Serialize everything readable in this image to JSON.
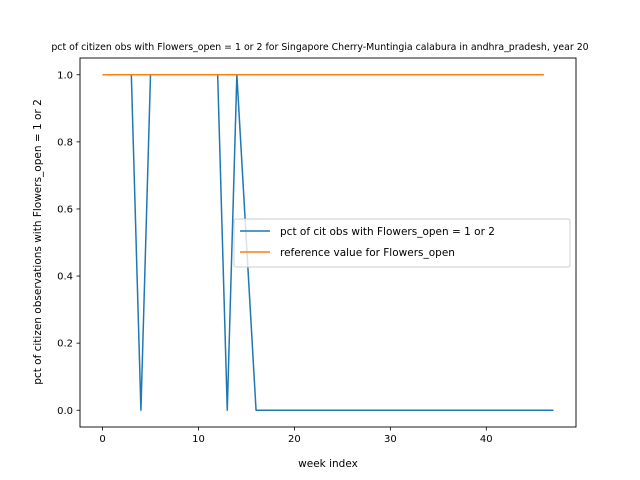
{
  "chart_data": {
    "type": "line",
    "title": "pct of citizen obs with Flowers_open = 1 or 2 for Singapore Cherry-Muntingia calabura in andhra_pradesh, year 20",
    "xlabel": "week index",
    "ylabel": "pct of citizen observations with Flowers_open = 1 or 2",
    "xlim": [
      -2.35,
      49.35
    ],
    "ylim": [
      -0.05,
      1.05
    ],
    "x_ticks": [
      0,
      10,
      20,
      30,
      40
    ],
    "y_ticks": [
      0.0,
      0.2,
      0.4,
      0.6,
      0.8,
      1.0
    ],
    "x_tick_labels": [
      "0",
      "10",
      "20",
      "30",
      "40"
    ],
    "y_tick_labels": [
      "0.0",
      "0.2",
      "0.4",
      "0.6",
      "0.8",
      "1.0"
    ],
    "grid": false,
    "legend_position": "center-right",
    "series": [
      {
        "name": "pct of cit obs with Flowers_open = 1 or 2",
        "color": "#1f77b4",
        "x": [
          0,
          1,
          2,
          3,
          4,
          5,
          6,
          7,
          8,
          9,
          10,
          11,
          12,
          13,
          14,
          15,
          16,
          17,
          18,
          19,
          20,
          21,
          22,
          23,
          24,
          25,
          26,
          27,
          28,
          29,
          30,
          31,
          32,
          33,
          34,
          35,
          36,
          37,
          38,
          39,
          40,
          41,
          42,
          43,
          44,
          45,
          46,
          47
        ],
        "y": [
          1,
          1,
          1,
          1,
          0,
          1,
          1,
          1,
          1,
          1,
          1,
          1,
          1,
          0,
          1,
          0.5,
          0,
          0,
          0,
          0,
          0,
          0,
          0,
          0,
          0,
          0,
          0,
          0,
          0,
          0,
          0,
          0,
          0,
          0,
          0,
          0,
          0,
          0,
          0,
          0,
          0,
          0,
          0,
          0,
          0,
          0,
          0,
          0
        ]
      },
      {
        "name": "reference value for Flowers_open",
        "color": "#ff7f0e",
        "x": [
          0,
          46
        ],
        "y": [
          1,
          1
        ]
      }
    ]
  }
}
